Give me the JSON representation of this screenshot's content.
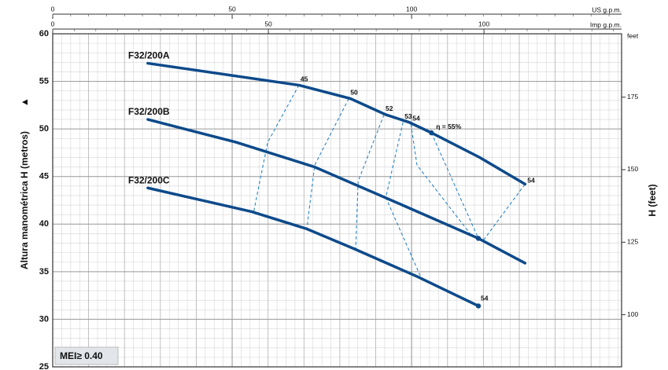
{
  "chart_data": {
    "type": "line",
    "ylabel": "Altura manométrica H  (metros)",
    "y2label": "H (feet)",
    "y2unit": "feet",
    "xlabel": "US g.p.m.",
    "x2label": "Imp g.p.m.",
    "xlim": [
      0,
      158.5
    ],
    "xticks": [
      0,
      50,
      100
    ],
    "x2lim": [
      0,
      131.9
    ],
    "x2ticks": [
      0,
      50,
      100
    ],
    "ylim": [
      25,
      60
    ],
    "yticks": [
      25,
      30,
      35,
      40,
      45,
      50,
      55,
      60
    ],
    "y2lim": [
      82.02,
      196.85
    ],
    "y2ticks": [
      100,
      125,
      150,
      175
    ],
    "grid": true,
    "badge": "MEI≥ 0.40",
    "series": [
      {
        "name": "F32/200A",
        "color": "#0d4a8a",
        "x": [
          26.5,
          68.6,
          82.9,
          92.8,
          99.3,
          105.5,
          119,
          131.6
        ],
        "values": [
          56.9,
          54.6,
          53.2,
          51.5,
          50.7,
          49.6,
          47.0,
          44.2
        ]
      },
      {
        "name": "F32/200B",
        "color": "#0d4a8a",
        "x": [
          26.5,
          51.1,
          73,
          95,
          118.6,
          131.6
        ],
        "values": [
          51.0,
          48.6,
          46.0,
          42.4,
          38.5,
          35.9
        ]
      },
      {
        "name": "F32/200C",
        "color": "#0d4a8a",
        "x": [
          26.5,
          55.5,
          70.8,
          84,
          101.5,
          118.6
        ],
        "values": [
          43.8,
          41.3,
          39.5,
          37.4,
          34.5,
          31.4
        ]
      }
    ],
    "efficiency": [
      {
        "name": "45",
        "color": "#2a86c8",
        "x": [
          68.6,
          59.9,
          56
        ],
        "values": [
          54.6,
          48.6,
          41.3
        ]
      },
      {
        "name": "50",
        "color": "#2a86c8",
        "x": [
          82.5,
          73,
          70.8
        ],
        "values": [
          53.2,
          46.2,
          39.5
        ]
      },
      {
        "name": "52",
        "color": "#2a86c8",
        "x": [
          92.3,
          85.1,
          84.4
        ],
        "values": [
          51.5,
          44.5,
          37.2
        ]
      },
      {
        "name": "53",
        "color": "#2a86c8",
        "x": [
          97.6,
          92.8,
          102.6
        ],
        "values": [
          50.7,
          42.8,
          34.4
        ]
      },
      {
        "name": "54",
        "color": "#2a86c8",
        "x": [
          99.8,
          101.5,
          116.9,
          120.2,
          131.6
        ],
        "values": [
          50.5,
          46.2,
          38.7,
          38.4,
          44.2
        ]
      },
      {
        "name": "η = 55%",
        "color": "#2a86c8",
        "x": [
          105.5,
          118.6
        ],
        "values": [
          49.6,
          38.5
        ]
      }
    ],
    "points": [
      {
        "x": 105.5,
        "y": 49.6
      },
      {
        "x": 118.6,
        "y": 38.5
      },
      {
        "x": 118.6,
        "y": 31.4,
        "label": "54"
      }
    ]
  }
}
